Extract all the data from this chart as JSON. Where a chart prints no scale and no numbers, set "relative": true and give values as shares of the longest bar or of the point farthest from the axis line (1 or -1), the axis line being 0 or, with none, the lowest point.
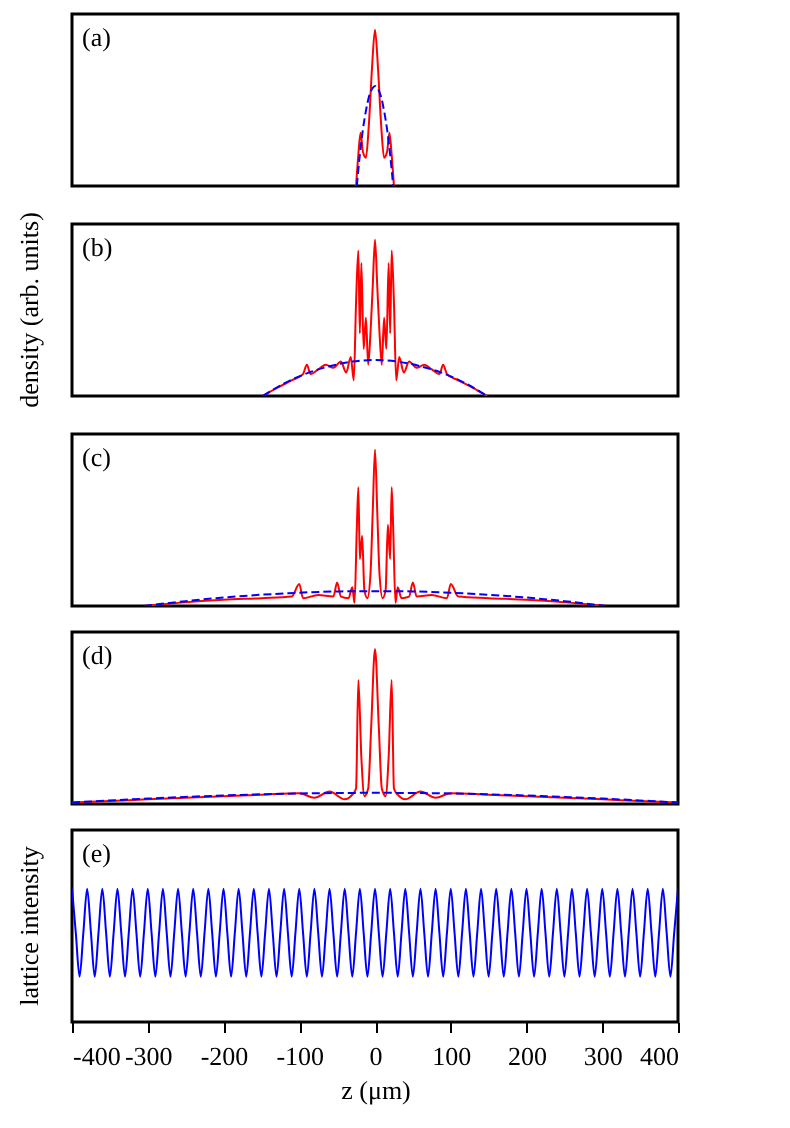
{
  "chart_data": [
    {
      "type": "line",
      "relative": true,
      "xlim": [
        -400,
        400
      ],
      "xticks": [
        -400,
        -300,
        -200,
        -100,
        0,
        100,
        200,
        300,
        400
      ],
      "tick_labels": false,
      "annotations": [
        "(a)"
      ],
      "series": [
        {
          "color": "#ff0000",
          "line_style": "solid",
          "x": [
            -25,
            -22,
            -19,
            -16,
            -12,
            -8,
            -4,
            0,
            4,
            8,
            12,
            16,
            19,
            22,
            25
          ],
          "values": [
            0,
            0.2,
            0.34,
            0.22,
            0.18,
            0.4,
            0.75,
            1,
            0.75,
            0.4,
            0.18,
            0.22,
            0.34,
            0.2,
            0
          ]
        },
        {
          "color": "#0000ff",
          "line_style": "dashed",
          "x": [
            -24,
            -20,
            -16,
            -12,
            -8,
            -4,
            0,
            4,
            8,
            12,
            16,
            20,
            24
          ],
          "values": [
            0,
            0.2,
            0.36,
            0.48,
            0.57,
            0.62,
            0.64,
            0.62,
            0.57,
            0.48,
            0.36,
            0.2,
            0
          ]
        }
      ]
    },
    {
      "type": "line",
      "relative": true,
      "xlim": [
        -400,
        400
      ],
      "xticks": [
        -400,
        -300,
        -200,
        -100,
        0,
        100,
        200,
        300,
        400
      ],
      "tick_labels": false,
      "annotations": [
        "(b)"
      ],
      "ylabel": "density (arb. units)",
      "series": [
        {
          "color": "#ff0000",
          "line_style": "solid",
          "x": [
            -148,
            -130,
            -110,
            -95,
            -90,
            -85,
            -75,
            -65,
            -55,
            -45,
            -38,
            -32,
            -28,
            -25,
            -22,
            -20,
            -18,
            -15,
            -12,
            -9,
            -6,
            -3,
            0,
            3,
            6,
            9,
            12,
            15,
            18,
            20,
            22,
            25,
            28,
            32,
            38,
            45,
            55,
            65,
            75,
            85,
            90,
            95,
            110,
            130,
            148
          ],
          "values": [
            0,
            0.05,
            0.1,
            0.14,
            0.2,
            0.14,
            0.17,
            0.2,
            0.18,
            0.22,
            0.15,
            0.25,
            0.1,
            0.6,
            0.93,
            0.4,
            0.85,
            0.3,
            0.5,
            0.2,
            0.4,
            0.7,
            1,
            0.7,
            0.4,
            0.2,
            0.5,
            0.3,
            0.85,
            0.4,
            0.93,
            0.6,
            0.1,
            0.25,
            0.15,
            0.22,
            0.18,
            0.2,
            0.17,
            0.14,
            0.2,
            0.14,
            0.1,
            0.05,
            0
          ]
        },
        {
          "color": "#0000ff",
          "line_style": "dashed",
          "x": [
            -148,
            -120,
            -90,
            -60,
            -30,
            0,
            30,
            60,
            90,
            120,
            148
          ],
          "values": [
            0,
            0.08,
            0.145,
            0.19,
            0.22,
            0.23,
            0.22,
            0.19,
            0.145,
            0.08,
            0
          ]
        }
      ]
    },
    {
      "type": "line",
      "relative": true,
      "xlim": [
        -400,
        400
      ],
      "xticks": [
        -400,
        -300,
        -200,
        -100,
        0,
        100,
        200,
        300,
        400
      ],
      "tick_labels": false,
      "annotations": [
        "(c)"
      ],
      "series": [
        {
          "color": "#ff0000",
          "line_style": "solid",
          "x": [
            -305,
            -260,
            -200,
            -150,
            -110,
            -100,
            -95,
            -75,
            -55,
            -50,
            -45,
            -35,
            -30,
            -27,
            -24,
            -22,
            -20,
            -17,
            -14,
            -10,
            -6,
            -3,
            0,
            3,
            6,
            10,
            14,
            17,
            20,
            22,
            24,
            27,
            30,
            35,
            45,
            50,
            55,
            75,
            95,
            100,
            110,
            150,
            200,
            260,
            305
          ],
          "values": [
            0,
            0.02,
            0.04,
            0.05,
            0.06,
            0.14,
            0.05,
            0.07,
            0.06,
            0.15,
            0.06,
            0.05,
            0.12,
            0.02,
            0.5,
            0.76,
            0.3,
            0.45,
            0.1,
            0.05,
            0.2,
            0.6,
            1,
            0.6,
            0.2,
            0.05,
            0.1,
            0.52,
            0.3,
            0.76,
            0.5,
            0.02,
            0.12,
            0.05,
            0.06,
            0.15,
            0.06,
            0.07,
            0.05,
            0.14,
            0.06,
            0.05,
            0.04,
            0.02,
            0
          ]
        },
        {
          "color": "#0000ff",
          "line_style": "dashed",
          "x": [
            -305,
            -250,
            -200,
            -150,
            -100,
            -50,
            0,
            50,
            100,
            150,
            200,
            250,
            305
          ],
          "values": [
            0,
            0.031,
            0.054,
            0.072,
            0.085,
            0.093,
            0.095,
            0.093,
            0.085,
            0.072,
            0.054,
            0.031,
            0
          ]
        }
      ]
    },
    {
      "type": "line",
      "relative": true,
      "xlim": [
        -400,
        400
      ],
      "xticks": [
        -400,
        -300,
        -200,
        -100,
        0,
        100,
        200,
        300,
        400
      ],
      "tick_labels": false,
      "annotations": [
        "(d)"
      ],
      "series": [
        {
          "color": "#ff0000",
          "line_style": "solid",
          "x": [
            -400,
            -350,
            -300,
            -250,
            -200,
            -150,
            -100,
            -80,
            -60,
            -40,
            -30,
            -25,
            -22,
            -18,
            -14,
            -9,
            -5,
            0,
            5,
            9,
            14,
            18,
            22,
            25,
            30,
            40,
            60,
            80,
            100,
            150,
            200,
            250,
            300,
            350,
            400
          ],
          "values": [
            0.01,
            0.02,
            0.03,
            0.04,
            0.05,
            0.06,
            0.07,
            0.04,
            0.08,
            0.03,
            0.06,
            0.1,
            0.8,
            0.3,
            0.05,
            0.1,
            0.5,
            1,
            0.5,
            0.1,
            0.05,
            0.3,
            0.8,
            0.1,
            0.06,
            0.03,
            0.08,
            0.04,
            0.07,
            0.06,
            0.05,
            0.04,
            0.03,
            0.02,
            0.01
          ]
        },
        {
          "color": "#0000ff",
          "line_style": "dashed",
          "x": [
            -400,
            -300,
            -200,
            -100,
            0,
            100,
            200,
            300,
            400
          ],
          "values": [
            0.01,
            0.035,
            0.055,
            0.068,
            0.072,
            0.068,
            0.055,
            0.035,
            0.01
          ]
        }
      ]
    },
    {
      "type": "line",
      "relative": true,
      "xlim": [
        -400,
        400
      ],
      "xticks": [
        -400,
        -300,
        -200,
        -100,
        0,
        100,
        200,
        300,
        400
      ],
      "tick_labels": "x",
      "annotations": [
        "(e)"
      ],
      "ylabel": "lattice intensity",
      "xlabel": "z (μm)",
      "series": [
        {
          "color": "#0000ff",
          "line_style": "solid",
          "x": [
            -400,
            -395,
            -390,
            -385,
            -380,
            -375,
            -370,
            -365,
            -360,
            -355,
            -350,
            -345,
            -340,
            -335,
            -330,
            -325,
            -320,
            -315,
            -310,
            -305,
            -300,
            -295,
            -290,
            -285,
            -280,
            -275,
            -270,
            -265,
            -260,
            -255,
            -250,
            -245,
            -240,
            -235,
            -230,
            -225,
            -220,
            -215,
            -210,
            -205,
            -200,
            -195,
            -190,
            -185,
            -180,
            -175,
            -170,
            -165,
            -160,
            -155,
            -150,
            -145,
            -140,
            -135,
            -130,
            -125,
            -120,
            -115,
            -110,
            -105,
            -100,
            -95,
            -90,
            -85,
            -80,
            -75,
            -70,
            -65,
            -60,
            -55,
            -50,
            -45,
            -40,
            -35,
            -30,
            -25,
            -20,
            -15,
            -10,
            -5,
            0,
            5,
            10,
            15,
            20,
            25,
            30,
            35,
            40,
            45,
            50,
            55,
            60,
            65,
            70,
            75,
            80,
            85,
            90,
            95,
            100,
            105,
            110,
            115,
            120,
            125,
            130,
            135,
            140,
            145,
            150,
            155,
            160,
            165,
            170,
            175,
            180,
            185,
            190,
            195,
            200,
            205,
            210,
            215,
            220,
            225,
            230,
            235,
            240,
            245,
            250,
            255,
            260,
            265,
            270,
            275,
            280,
            285,
            290,
            295,
            300,
            305,
            310,
            315,
            320,
            325,
            330,
            335,
            340,
            345,
            350,
            355,
            360,
            365,
            370,
            375,
            380,
            385,
            390,
            395,
            400
          ],
          "values": [
            1,
            0.67,
            0.34,
            0.67,
            1,
            0.67,
            0.34,
            0.67,
            1,
            0.67,
            0.34,
            0.67,
            1,
            0.67,
            0.34,
            0.67,
            1,
            0.67,
            0.34,
            0.67,
            1,
            0.67,
            0.34,
            0.67,
            1,
            0.67,
            0.34,
            0.67,
            1,
            0.67,
            0.34,
            0.67,
            1,
            0.67,
            0.34,
            0.67,
            1,
            0.67,
            0.34,
            0.67,
            1,
            0.67,
            0.34,
            0.67,
            1,
            0.67,
            0.34,
            0.67,
            1,
            0.67,
            0.34,
            0.67,
            1,
            0.67,
            0.34,
            0.67,
            1,
            0.67,
            0.34,
            0.67,
            1,
            0.67,
            0.34,
            0.67,
            1,
            0.67,
            0.34,
            0.67,
            1,
            0.67,
            0.34,
            0.67,
            1,
            0.67,
            0.34,
            0.67,
            1,
            0.67,
            0.34,
            0.67,
            1,
            0.67,
            0.34,
            0.67,
            1,
            0.67,
            0.34,
            0.67,
            1,
            0.67,
            0.34,
            0.67,
            1,
            0.67,
            0.34,
            0.67,
            1,
            0.67,
            0.34,
            0.67,
            1,
            0.67,
            0.34,
            0.67,
            1,
            0.67,
            0.34,
            0.67,
            1,
            0.67,
            0.34,
            0.67,
            1,
            0.67,
            0.34,
            0.67,
            1,
            0.67,
            0.34,
            0.67,
            1,
            0.67,
            0.34,
            0.67,
            1,
            0.67,
            0.34,
            0.67,
            1,
            0.67,
            0.34,
            0.67,
            1,
            0.67,
            0.34,
            0.67,
            1,
            0.67,
            0.34,
            0.67,
            1,
            0.67,
            0.34,
            0.67,
            1,
            0.67,
            0.34,
            0.67,
            1,
            0.67,
            0.34,
            0.67,
            1,
            0.67,
            0.34,
            0.67,
            1,
            0.67,
            0.34,
            0.67,
            1
          ]
        }
      ]
    }
  ]
}
